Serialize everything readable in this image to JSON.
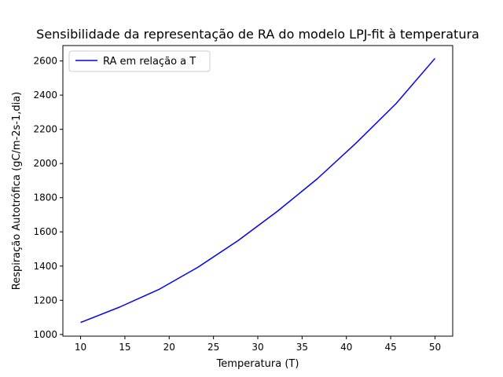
{
  "chart_data": {
    "type": "line",
    "title": "Sensibilidade da representação de RA do modelo LPJ-fit à temperatura",
    "xlabel": "Temperatura (T)",
    "ylabel": "Respiração Autotrófica (gC/m-2s-1,dia)",
    "xlim": [
      8,
      52
    ],
    "ylim": [
      990,
      2690
    ],
    "x_ticks": [
      10,
      15,
      20,
      25,
      30,
      35,
      40,
      45,
      50
    ],
    "y_ticks": [
      1000,
      1200,
      1400,
      1600,
      1800,
      2000,
      2200,
      2400,
      2600
    ],
    "grid": false,
    "legend_position": "top-left",
    "series": [
      {
        "name": "RA em relação a T",
        "color": "#0000ff",
        "x": [
          10.0,
          14.4,
          18.9,
          23.3,
          27.8,
          32.2,
          36.7,
          41.1,
          45.6,
          50.0
        ],
        "y": [
          1070,
          1160,
          1265,
          1395,
          1550,
          1720,
          1910,
          2120,
          2350,
          2615
        ]
      }
    ]
  }
}
